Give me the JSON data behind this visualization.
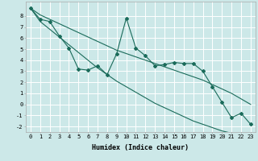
{
  "background_color": "#cce8e8",
  "grid_color": "#ffffff",
  "line_color": "#1a6b5a",
  "x_data": [
    0,
    1,
    2,
    3,
    4,
    5,
    6,
    7,
    8,
    9,
    10,
    11,
    12,
    13,
    14,
    15,
    16,
    17,
    18,
    19,
    20,
    21,
    22,
    23
  ],
  "y_scatter": [
    8.7,
    7.7,
    7.5,
    6.2,
    5.1,
    3.2,
    3.1,
    3.5,
    2.7,
    4.6,
    7.8,
    5.1,
    4.4,
    3.5,
    3.6,
    3.8,
    3.7,
    3.7,
    3.0,
    1.6,
    0.2,
    -1.2,
    -0.8,
    -1.8
  ],
  "y_upper": [
    8.7,
    8.1,
    7.7,
    7.3,
    6.9,
    6.5,
    6.1,
    5.7,
    5.3,
    4.9,
    4.6,
    4.3,
    4.0,
    3.7,
    3.4,
    3.1,
    2.8,
    2.5,
    2.2,
    1.8,
    1.4,
    1.0,
    0.5,
    0.0
  ],
  "y_lower": [
    8.7,
    7.5,
    6.8,
    6.1,
    5.4,
    4.7,
    4.0,
    3.3,
    2.7,
    2.1,
    1.6,
    1.1,
    0.6,
    0.1,
    -0.3,
    -0.7,
    -1.1,
    -1.5,
    -1.8,
    -2.1,
    -2.4,
    -2.6,
    -2.8,
    -3.0
  ],
  "xlim": [
    -0.5,
    23.5
  ],
  "ylim": [
    -2.5,
    9.3
  ],
  "xticks": [
    0,
    1,
    2,
    3,
    4,
    5,
    6,
    7,
    8,
    9,
    10,
    11,
    12,
    13,
    14,
    15,
    16,
    17,
    18,
    19,
    20,
    21,
    22,
    23
  ],
  "yticks": [
    -2,
    -1,
    0,
    1,
    2,
    3,
    4,
    5,
    6,
    7,
    8
  ],
  "xlabel": "Humidex (Indice chaleur)",
  "xlabel_fontsize": 6,
  "tick_fontsize": 5,
  "marker": "D",
  "marker_size": 2.0
}
